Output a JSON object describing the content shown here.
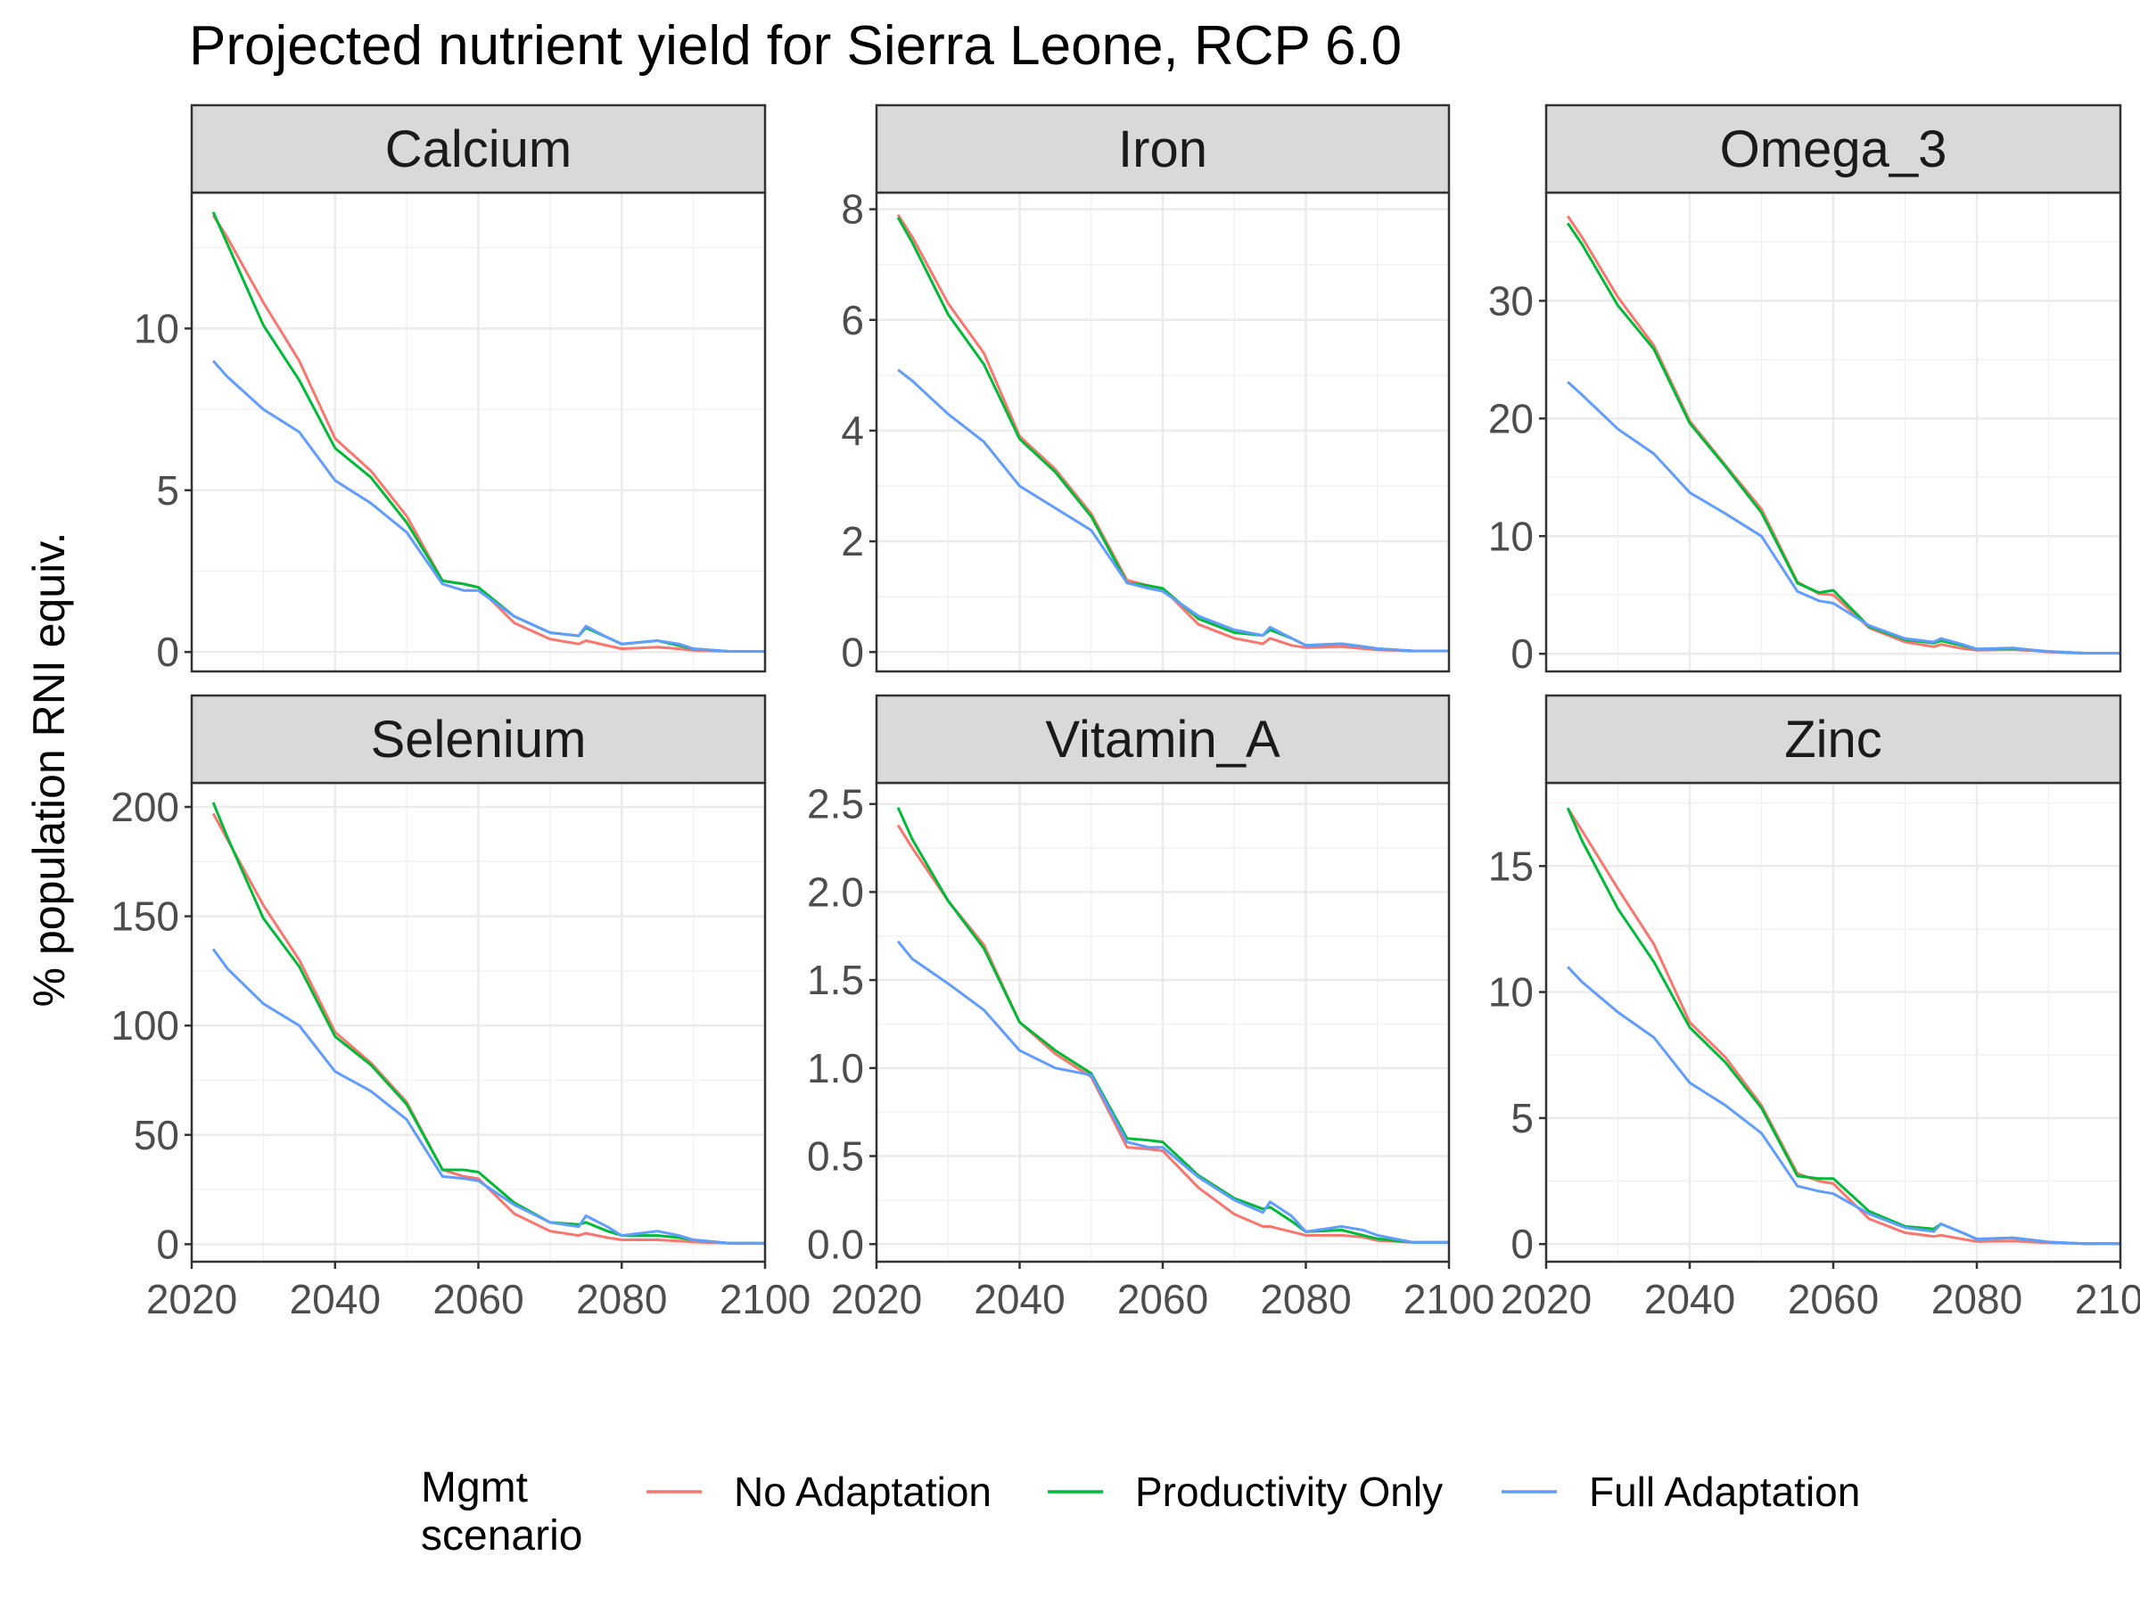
{
  "chart_data": {
    "type": "line",
    "title": "Projected nutrient yield for Sierra Leone, RCP 6.0",
    "ylabel": "% population RNI equiv.",
    "xlabel": "",
    "grid": true,
    "legend": {
      "title": "Mgmt scenario",
      "title_lines": [
        "Mgmt",
        "scenario"
      ],
      "position": "bottom",
      "entries": [
        "No Adaptation",
        "Productivity Only",
        "Full Adaptation"
      ]
    },
    "series_colors": {
      "No Adaptation": "#F8766D",
      "Productivity Only": "#00BA38",
      "Full Adaptation": "#619CFF"
    },
    "x": [
      2023,
      2025,
      2030,
      2035,
      2040,
      2045,
      2050,
      2055,
      2058,
      2060,
      2065,
      2070,
      2074,
      2075,
      2078,
      2080,
      2085,
      2088,
      2090,
      2095,
      2100
    ],
    "xlim": [
      2020,
      2100
    ],
    "x_ticks": [
      2020,
      2040,
      2060,
      2080,
      2100
    ],
    "panels": [
      {
        "name": "Calcium",
        "ylim": [
          -0.6,
          14.2
        ],
        "y_ticks": [
          0,
          5,
          10
        ],
        "series": [
          {
            "name": "No Adaptation",
            "values": [
              13.5,
              12.8,
              10.8,
              9.0,
              6.6,
              5.6,
              4.2,
              2.2,
              2.1,
              2.0,
              0.9,
              0.4,
              0.25,
              0.35,
              0.2,
              0.1,
              0.15,
              0.1,
              0.05,
              0.02,
              0.02
            ]
          },
          {
            "name": "Productivity Only",
            "values": [
              13.6,
              12.6,
              10.1,
              8.4,
              6.3,
              5.4,
              4.0,
              2.2,
              2.1,
              2.0,
              1.1,
              0.6,
              0.5,
              0.75,
              0.45,
              0.25,
              0.35,
              0.2,
              0.1,
              0.02,
              0.02
            ]
          },
          {
            "name": "Full Adaptation",
            "values": [
              9.0,
              8.5,
              7.5,
              6.8,
              5.3,
              4.6,
              3.7,
              2.1,
              1.9,
              1.9,
              1.1,
              0.6,
              0.5,
              0.8,
              0.45,
              0.25,
              0.35,
              0.25,
              0.1,
              0.02,
              0.02
            ]
          }
        ]
      },
      {
        "name": "Iron",
        "ylim": [
          -0.35,
          8.3
        ],
        "y_ticks": [
          0,
          2,
          4,
          6,
          8
        ],
        "series": [
          {
            "name": "No Adaptation",
            "values": [
              7.9,
              7.5,
              6.3,
              5.4,
              3.9,
              3.3,
              2.5,
              1.3,
              1.2,
              1.15,
              0.5,
              0.25,
              0.15,
              0.25,
              0.12,
              0.08,
              0.1,
              0.06,
              0.04,
              0.02,
              0.02
            ]
          },
          {
            "name": "Productivity Only",
            "values": [
              7.85,
              7.4,
              6.1,
              5.2,
              3.85,
              3.25,
              2.45,
              1.25,
              1.2,
              1.15,
              0.6,
              0.35,
              0.3,
              0.4,
              0.25,
              0.12,
              0.15,
              0.1,
              0.06,
              0.02,
              0.02
            ]
          },
          {
            "name": "Full Adaptation",
            "values": [
              5.1,
              4.9,
              4.3,
              3.8,
              3.0,
              2.6,
              2.2,
              1.25,
              1.15,
              1.1,
              0.65,
              0.4,
              0.3,
              0.45,
              0.25,
              0.12,
              0.15,
              0.1,
              0.06,
              0.02,
              0.02
            ]
          }
        ]
      },
      {
        "name": "Omega_3",
        "ylim": [
          -1.5,
          39.2
        ],
        "y_ticks": [
          0,
          10,
          20,
          30
        ],
        "series": [
          {
            "name": "No Adaptation",
            "values": [
              37.2,
              35.4,
              30.3,
              26.2,
              19.8,
              16.0,
              12.3,
              6.1,
              5.1,
              5.0,
              2.2,
              1.0,
              0.6,
              0.8,
              0.45,
              0.3,
              0.35,
              0.25,
              0.15,
              0.05,
              0.05
            ]
          },
          {
            "name": "Productivity Only",
            "values": [
              36.6,
              34.8,
              29.6,
              25.9,
              19.6,
              15.9,
              12.0,
              6.0,
              5.2,
              5.4,
              2.3,
              1.2,
              0.9,
              1.1,
              0.7,
              0.4,
              0.45,
              0.3,
              0.2,
              0.05,
              0.05
            ]
          },
          {
            "name": "Full Adaptation",
            "values": [
              23.1,
              22.0,
              19.1,
              17.0,
              13.7,
              11.9,
              10.0,
              5.3,
              4.5,
              4.3,
              2.4,
              1.3,
              1.0,
              1.3,
              0.8,
              0.4,
              0.5,
              0.3,
              0.2,
              0.05,
              0.05
            ]
          }
        ]
      },
      {
        "name": "Selenium",
        "ylim": [
          -8,
          211
        ],
        "y_ticks": [
          0,
          50,
          100,
          150,
          200
        ],
        "series": [
          {
            "name": "No Adaptation",
            "values": [
              197,
              185,
              155,
              130,
              97,
              83,
              65,
              34,
              31,
              30,
              14,
              6,
              4,
              5,
              3,
              2,
              2,
              1.5,
              1,
              0.5,
              0.5
            ]
          },
          {
            "name": "Productivity Only",
            "values": [
              202,
              186,
              149,
              127,
              95,
              82,
              64,
              34,
              34,
              33,
              19,
              10,
              9,
              10,
              6,
              4,
              4,
              3,
              2,
              0.5,
              0.5
            ]
          },
          {
            "name": "Full Adaptation",
            "values": [
              135,
              126,
              110,
              100,
              79,
              70,
              57,
              31,
              30,
              29,
              18,
              10,
              8,
              13,
              8,
              4,
              6,
              4,
              2,
              0.5,
              0.5
            ]
          }
        ]
      },
      {
        "name": "Vitamin_A",
        "ylim": [
          -0.1,
          2.62
        ],
        "y_ticks": [
          0.0,
          0.5,
          1.0,
          1.5,
          2.0,
          2.5
        ],
        "series": [
          {
            "name": "No Adaptation",
            "values": [
              2.38,
              2.25,
              1.95,
              1.7,
              1.26,
              1.08,
              0.95,
              0.55,
              0.54,
              0.53,
              0.32,
              0.17,
              0.1,
              0.1,
              0.07,
              0.05,
              0.05,
              0.04,
              0.02,
              0.01,
              0.01
            ]
          },
          {
            "name": "Productivity Only",
            "values": [
              2.48,
              2.3,
              1.95,
              1.68,
              1.26,
              1.1,
              0.97,
              0.6,
              0.59,
              0.58,
              0.39,
              0.26,
              0.2,
              0.21,
              0.13,
              0.07,
              0.08,
              0.05,
              0.03,
              0.01,
              0.01
            ]
          },
          {
            "name": "Full Adaptation",
            "values": [
              1.72,
              1.62,
              1.48,
              1.33,
              1.1,
              1.0,
              0.96,
              0.58,
              0.55,
              0.55,
              0.38,
              0.25,
              0.18,
              0.24,
              0.16,
              0.07,
              0.1,
              0.08,
              0.05,
              0.01,
              0.01
            ]
          }
        ]
      },
      {
        "name": "Zinc",
        "ylim": [
          -0.7,
          18.3
        ],
        "y_ticks": [
          0,
          5,
          10,
          15
        ],
        "series": [
          {
            "name": "No Adaptation",
            "values": [
              17.3,
              16.4,
              14.1,
              11.9,
              8.8,
              7.4,
              5.5,
              2.8,
              2.5,
              2.4,
              1.0,
              0.45,
              0.3,
              0.35,
              0.2,
              0.1,
              0.12,
              0.08,
              0.05,
              0.02,
              0.02
            ]
          },
          {
            "name": "Productivity Only",
            "values": [
              17.3,
              16.0,
              13.3,
              11.2,
              8.6,
              7.2,
              5.4,
              2.7,
              2.6,
              2.6,
              1.3,
              0.7,
              0.6,
              0.8,
              0.45,
              0.2,
              0.25,
              0.15,
              0.08,
              0.02,
              0.02
            ]
          },
          {
            "name": "Full Adaptation",
            "values": [
              11.0,
              10.4,
              9.2,
              8.2,
              6.4,
              5.5,
              4.4,
              2.3,
              2.1,
              2.0,
              1.2,
              0.65,
              0.5,
              0.8,
              0.45,
              0.2,
              0.25,
              0.15,
              0.08,
              0.02,
              0.02
            ]
          }
        ]
      }
    ]
  }
}
